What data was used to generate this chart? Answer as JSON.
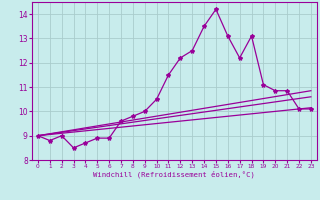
{
  "title": "",
  "xlabel": "Windchill (Refroidissement éolien,°C)",
  "ylabel": "",
  "background_color": "#c8ecec",
  "line_color": "#990099",
  "grid_color": "#aacccc",
  "xlim": [
    -0.5,
    23.5
  ],
  "ylim": [
    8.0,
    14.5
  ],
  "yticks": [
    8,
    9,
    10,
    11,
    12,
    13,
    14
  ],
  "xticks": [
    0,
    1,
    2,
    3,
    4,
    5,
    6,
    7,
    8,
    9,
    10,
    11,
    12,
    13,
    14,
    15,
    16,
    17,
    18,
    19,
    20,
    21,
    22,
    23
  ],
  "main_x": [
    0,
    1,
    2,
    3,
    4,
    5,
    6,
    7,
    8,
    9,
    10,
    11,
    12,
    13,
    14,
    15,
    16,
    17,
    18,
    19,
    20,
    21,
    22,
    23
  ],
  "main_y": [
    9.0,
    8.8,
    9.0,
    8.5,
    8.7,
    8.9,
    8.9,
    9.6,
    9.8,
    10.0,
    10.5,
    11.5,
    12.2,
    12.5,
    13.5,
    14.2,
    13.1,
    12.2,
    13.1,
    11.1,
    10.85,
    10.85,
    10.1,
    10.1
  ],
  "line1_x": [
    0,
    23
  ],
  "line1_y": [
    9.0,
    10.6
  ],
  "line2_x": [
    0,
    23
  ],
  "line2_y": [
    9.0,
    10.15
  ],
  "line3_x": [
    0,
    23
  ],
  "line3_y": [
    9.0,
    10.85
  ]
}
